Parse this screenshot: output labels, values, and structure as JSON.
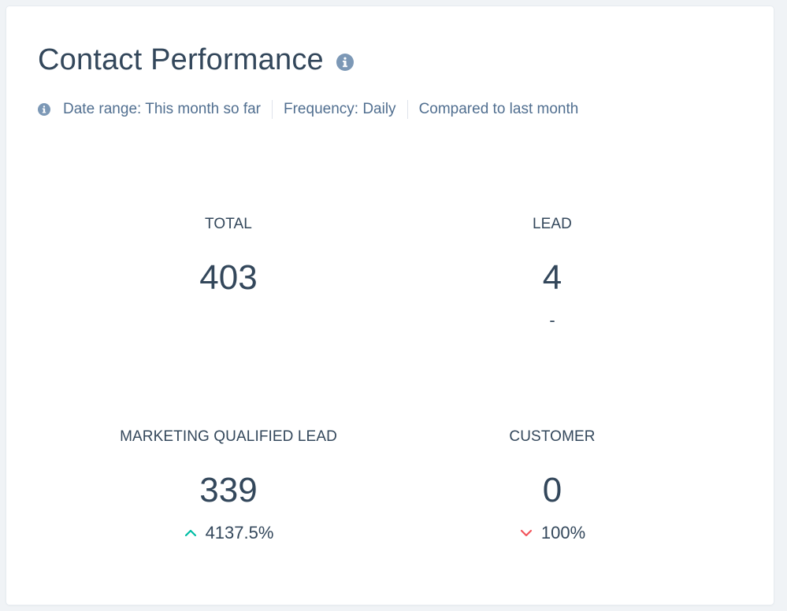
{
  "header": {
    "title": "Contact Performance",
    "info_icon": "info-icon"
  },
  "meta": {
    "date_range": "Date range: This month so far",
    "frequency": "Frequency: Daily",
    "comparison": "Compared to last month"
  },
  "metrics": [
    {
      "label": "TOTAL",
      "value": "403",
      "change": ""
    },
    {
      "label": "LEAD",
      "value": "4",
      "change": "-"
    },
    {
      "label": "MARKETING QUALIFIED LEAD",
      "value": "339",
      "change": "4137.5%",
      "direction": "up"
    },
    {
      "label": "CUSTOMER",
      "value": "0",
      "change": "100%",
      "direction": "down"
    }
  ],
  "colors": {
    "up": "#00bda5",
    "down": "#f2545b",
    "text": "#33475b",
    "muted": "#516f90",
    "icon": "#7c98b6"
  }
}
